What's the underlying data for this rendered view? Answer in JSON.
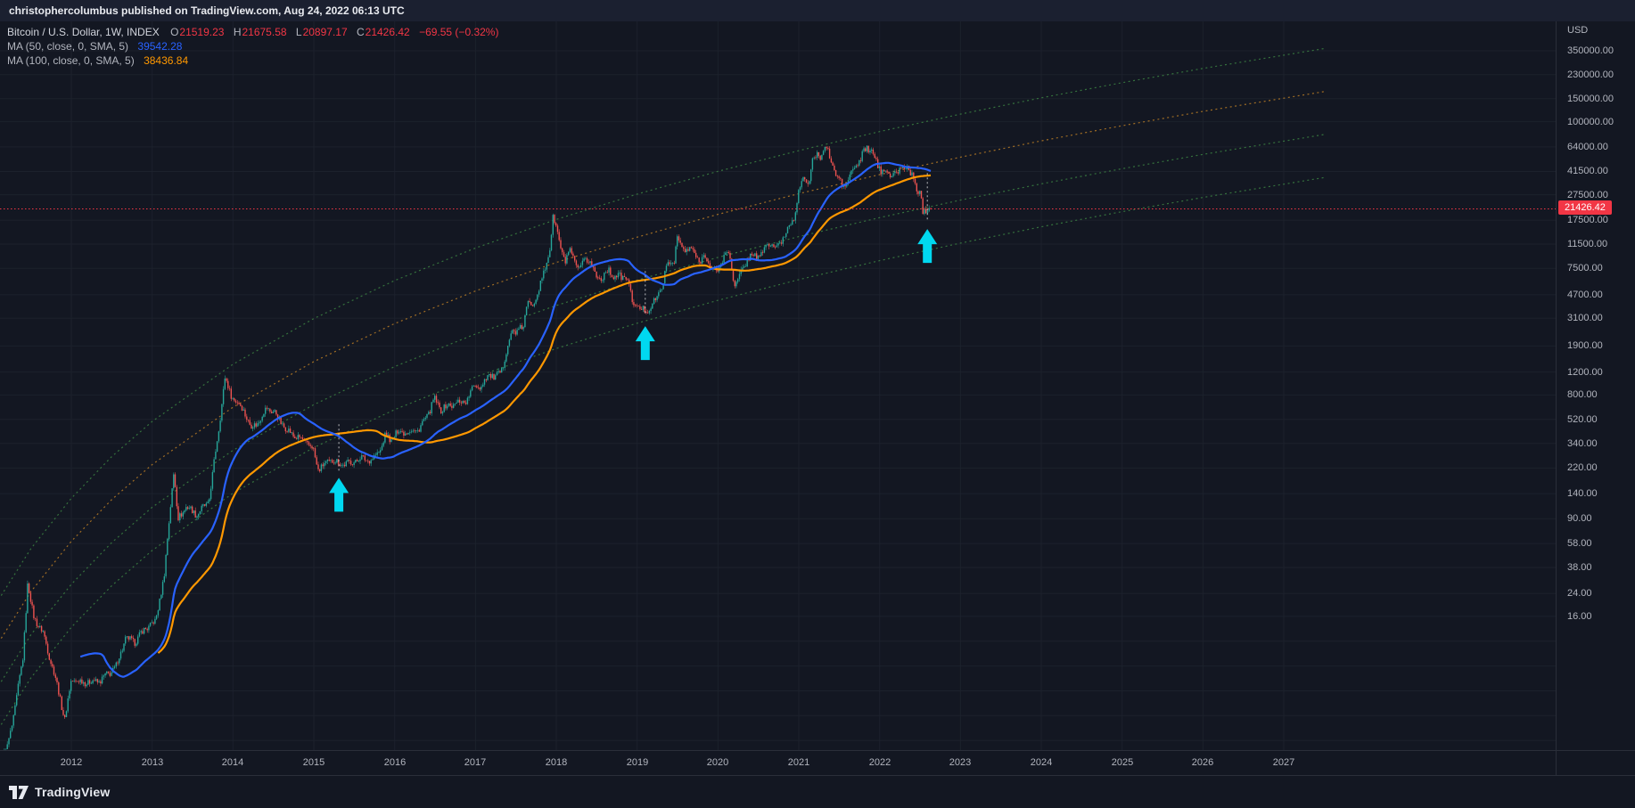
{
  "header": {
    "text": "christophercolumbus published on TradingView.com, Aug 24, 2022 06:13 UTC"
  },
  "legend": {
    "symbol": "Bitcoin / U.S. Dollar, 1W, INDEX",
    "ohlc": [
      {
        "label": "O",
        "value": "21519.23"
      },
      {
        "label": "H",
        "value": "21675.58"
      },
      {
        "label": "L",
        "value": "20897.17"
      },
      {
        "label": "C",
        "value": "21426.42"
      }
    ],
    "change": "−69.55 (−0.32%)",
    "ma50": {
      "label": "MA (50, close, 0, SMA, 5)",
      "value": "39542.28"
    },
    "ma100": {
      "label": "MA (100, close, 0, SMA, 5)",
      "value": "38436.84"
    }
  },
  "price_axis": {
    "currency": "USD",
    "ticks": [
      350000,
      230000,
      150000,
      100000,
      64000,
      41500,
      27500,
      17500,
      11500,
      7500,
      4700,
      3100,
      1900,
      1200,
      800,
      520,
      340,
      220,
      140,
      90,
      58,
      38,
      24,
      16
    ],
    "last_price": "21426.42"
  },
  "time_axis": {
    "years": [
      2012,
      2013,
      2014,
      2015,
      2016,
      2017,
      2018,
      2019,
      2020,
      2021,
      2022,
      2023,
      2024,
      2025,
      2026,
      2027
    ]
  },
  "footer": {
    "brand": "TradingView"
  },
  "colors": {
    "background": "#131722",
    "up": "#26a69a",
    "down": "#ef5350",
    "ma50": "#2962ff",
    "ma100": "#ff9800",
    "price_line": "#f23645",
    "arrow": "#00d8f0",
    "curve_green": "#4caf50",
    "curve_orange": "#ffa726",
    "grid": "rgba(140,150,165,0.08)",
    "axis_text": "#b2b5be"
  },
  "chart_data": {
    "type": "candlestick",
    "symbol": "Bitcoin / U.S. Dollar",
    "timeframe": "1W",
    "exchange": "INDEX",
    "scale": "log",
    "ylabel": "USD",
    "visible_time_range": [
      2011.1,
      2030.4
    ],
    "price_axis_range_hint": [
      1.6,
      430000
    ],
    "last_bar": {
      "open": 21519.23,
      "high": 21675.58,
      "low": 20897.17,
      "close": 21426.42,
      "change": -69.55,
      "change_pct": -0.32
    },
    "price_line": 21426.42,
    "anchors": [
      [
        2011.17,
        1.2
      ],
      [
        2011.28,
        2.6
      ],
      [
        2011.4,
        7.5
      ],
      [
        2011.46,
        29
      ],
      [
        2011.53,
        16
      ],
      [
        2011.65,
        12
      ],
      [
        2011.8,
        5.5
      ],
      [
        2011.92,
        2.6
      ],
      [
        2012.0,
        5.2
      ],
      [
        2012.15,
        5.0
      ],
      [
        2012.35,
        5.1
      ],
      [
        2012.55,
        6.5
      ],
      [
        2012.67,
        10.8
      ],
      [
        2012.78,
        10.2
      ],
      [
        2012.92,
        13.0
      ],
      [
        2013.04,
        14.5
      ],
      [
        2013.15,
        33
      ],
      [
        2013.24,
        140
      ],
      [
        2013.27,
        210
      ],
      [
        2013.32,
        88
      ],
      [
        2013.42,
        112
      ],
      [
        2013.55,
        97
      ],
      [
        2013.7,
        120
      ],
      [
        2013.82,
        420
      ],
      [
        2013.9,
        1080
      ],
      [
        2013.97,
        810
      ],
      [
        2014.05,
        700
      ],
      [
        2014.13,
        620
      ],
      [
        2014.22,
        450
      ],
      [
        2014.32,
        500
      ],
      [
        2014.42,
        640
      ],
      [
        2014.52,
        580
      ],
      [
        2014.65,
        440
      ],
      [
        2014.78,
        380
      ],
      [
        2014.9,
        350
      ],
      [
        2014.99,
        310
      ],
      [
        2015.05,
        215
      ],
      [
        2015.12,
        230
      ],
      [
        2015.22,
        255
      ],
      [
        2015.33,
        236
      ],
      [
        2015.45,
        240
      ],
      [
        2015.58,
        262
      ],
      [
        2015.72,
        252
      ],
      [
        2015.83,
        310
      ],
      [
        2015.89,
        395
      ],
      [
        2015.96,
        360
      ],
      [
        2016.05,
        425
      ],
      [
        2016.17,
        415
      ],
      [
        2016.3,
        435
      ],
      [
        2016.42,
        580
      ],
      [
        2016.49,
        745
      ],
      [
        2016.57,
        620
      ],
      [
        2016.67,
        660
      ],
      [
        2016.78,
        695
      ],
      [
        2016.9,
        735
      ],
      [
        2017.0,
        985
      ],
      [
        2017.07,
        905
      ],
      [
        2017.16,
        1180
      ],
      [
        2017.24,
        1055
      ],
      [
        2017.33,
        1270
      ],
      [
        2017.41,
        1990
      ],
      [
        2017.46,
        2560
      ],
      [
        2017.52,
        2420
      ],
      [
        2017.59,
        2650
      ],
      [
        2017.64,
        4150
      ],
      [
        2017.71,
        3850
      ],
      [
        2017.79,
        5500
      ],
      [
        2017.86,
        7150
      ],
      [
        2017.92,
        10800
      ],
      [
        2017.96,
        18900
      ],
      [
        2018.01,
        14200
      ],
      [
        2018.06,
        10500
      ],
      [
        2018.11,
        8400
      ],
      [
        2018.16,
        10200
      ],
      [
        2018.22,
        8700
      ],
      [
        2018.29,
        7050
      ],
      [
        2018.36,
        9050
      ],
      [
        2018.42,
        8400
      ],
      [
        2018.49,
        6500
      ],
      [
        2018.57,
        6350
      ],
      [
        2018.64,
        7350
      ],
      [
        2018.72,
        6450
      ],
      [
        2018.81,
        6500
      ],
      [
        2018.88,
        6300
      ],
      [
        2018.93,
        4350
      ],
      [
        2018.99,
        3850
      ],
      [
        2019.05,
        3600
      ],
      [
        2019.12,
        3580
      ],
      [
        2019.2,
        3980
      ],
      [
        2019.29,
        5150
      ],
      [
        2019.38,
        8000
      ],
      [
        2019.46,
        8800
      ],
      [
        2019.49,
        12800
      ],
      [
        2019.55,
        10900
      ],
      [
        2019.62,
        10200
      ],
      [
        2019.69,
        10400
      ],
      [
        2019.77,
        8300
      ],
      [
        2019.85,
        9500
      ],
      [
        2019.92,
        7300
      ],
      [
        2020.0,
        7250
      ],
      [
        2020.08,
        9500
      ],
      [
        2020.14,
        9900
      ],
      [
        2020.21,
        5400
      ],
      [
        2020.28,
        6750
      ],
      [
        2020.36,
        8850
      ],
      [
        2020.44,
        9600
      ],
      [
        2020.52,
        9150
      ],
      [
        2020.59,
        11100
      ],
      [
        2020.66,
        11600
      ],
      [
        2020.73,
        10500
      ],
      [
        2020.81,
        13100
      ],
      [
        2020.88,
        15600
      ],
      [
        2020.94,
        18800
      ],
      [
        2021.0,
        29300
      ],
      [
        2021.04,
        33500
      ],
      [
        2021.08,
        38300
      ],
      [
        2021.12,
        33000
      ],
      [
        2021.17,
        48500
      ],
      [
        2021.22,
        56500
      ],
      [
        2021.26,
        54500
      ],
      [
        2021.31,
        59000
      ],
      [
        2021.34,
        63200
      ],
      [
        2021.38,
        55500
      ],
      [
        2021.42,
        46000
      ],
      [
        2021.46,
        37500
      ],
      [
        2021.51,
        35800
      ],
      [
        2021.56,
        31800
      ],
      [
        2021.61,
        34800
      ],
      [
        2021.66,
        42200
      ],
      [
        2021.71,
        47200
      ],
      [
        2021.76,
        48900
      ],
      [
        2021.81,
        61200
      ],
      [
        2021.84,
        64200
      ],
      [
        2021.88,
        58500
      ],
      [
        2021.92,
        57200
      ],
      [
        2021.97,
        46800
      ],
      [
        2022.02,
        41800
      ],
      [
        2022.07,
        43600
      ],
      [
        2022.12,
        38600
      ],
      [
        2022.17,
        39300
      ],
      [
        2022.23,
        41200
      ],
      [
        2022.28,
        44600
      ],
      [
        2022.33,
        46200
      ],
      [
        2022.38,
        39800
      ],
      [
        2022.42,
        36100
      ],
      [
        2022.46,
        30200
      ],
      [
        2022.5,
        29300
      ],
      [
        2022.54,
        19200
      ],
      [
        2022.58,
        21400
      ],
      [
        2022.61,
        23200
      ],
      [
        2022.635,
        24300
      ],
      [
        2022.648,
        21426.42
      ]
    ],
    "ma": [
      {
        "name": "MA50",
        "period": 50,
        "color": "#2962ff",
        "last_value": 39542.28
      },
      {
        "name": "MA100",
        "period": 100,
        "color": "#ff9800",
        "last_value": 38436.84
      }
    ],
    "trend_curves": [
      {
        "name": "upper-resistance",
        "color": "#4caf50",
        "points": [
          [
            2011.1,
            21.5
          ],
          [
            2011.5,
            53
          ],
          [
            2012,
            129
          ],
          [
            2012.5,
            269
          ],
          [
            2013,
            501
          ],
          [
            2014,
            1377
          ],
          [
            2015,
            3085
          ],
          [
            2016,
            6040
          ],
          [
            2017,
            10740
          ],
          [
            2018,
            17780
          ],
          [
            2019,
            27800
          ],
          [
            2020,
            41600
          ],
          [
            2021,
            59950
          ],
          [
            2022,
            83900
          ],
          [
            2023,
            114300
          ],
          [
            2024,
            152400
          ],
          [
            2025,
            199200
          ],
          [
            2026,
            256400
          ],
          [
            2027.5,
            364000
          ]
        ]
      },
      {
        "name": "mid-channel",
        "color": "#ffa726",
        "points": [
          [
            2011.1,
            10.1
          ],
          [
            2011.5,
            24.8
          ],
          [
            2012,
            60.3
          ],
          [
            2012.5,
            126
          ],
          [
            2013,
            234
          ],
          [
            2014,
            644
          ],
          [
            2015,
            1443
          ],
          [
            2016,
            2825
          ],
          [
            2017,
            5023
          ],
          [
            2018,
            8316
          ],
          [
            2019,
            13002
          ],
          [
            2020,
            19456
          ],
          [
            2021,
            28039
          ],
          [
            2022,
            39240
          ],
          [
            2023,
            53458
          ],
          [
            2024,
            71277
          ],
          [
            2025,
            93166
          ],
          [
            2026,
            119918
          ],
          [
            2027.5,
            170248
          ]
        ]
      },
      {
        "name": "lower-channel",
        "color": "#4caf50",
        "points": [
          [
            2011.1,
            4.7
          ],
          [
            2011.5,
            11.6
          ],
          [
            2012,
            28.2
          ],
          [
            2012.5,
            58.9
          ],
          [
            2013,
            110
          ],
          [
            2014,
            301
          ],
          [
            2015,
            675
          ],
          [
            2016,
            1321
          ],
          [
            2017,
            2350
          ],
          [
            2018,
            3890
          ],
          [
            2019,
            6082
          ],
          [
            2020,
            9102
          ],
          [
            2021,
            13117
          ],
          [
            2022,
            18357
          ],
          [
            2023,
            25009
          ],
          [
            2024,
            33345
          ],
          [
            2025,
            43585
          ],
          [
            2026,
            56100
          ],
          [
            2027.5,
            79643
          ]
        ]
      },
      {
        "name": "support-curve",
        "color": "#4caf50",
        "points": [
          [
            2011.1,
            2.2
          ],
          [
            2011.5,
            5.4
          ],
          [
            2012,
            13.2
          ],
          [
            2012.5,
            27.5
          ],
          [
            2013,
            51.3
          ],
          [
            2014,
            141
          ],
          [
            2015,
            316
          ],
          [
            2016,
            618
          ],
          [
            2017,
            1099
          ],
          [
            2018,
            1819
          ],
          [
            2019,
            2845
          ],
          [
            2020,
            4258
          ],
          [
            2021,
            6136
          ],
          [
            2022,
            8587
          ],
          [
            2023,
            11698
          ],
          [
            2024,
            15598
          ],
          [
            2025,
            20388
          ],
          [
            2026,
            26243
          ],
          [
            2027.5,
            37253
          ]
        ]
      }
    ],
    "arrows": [
      {
        "t": 2015.31,
        "tip_price": 185
      },
      {
        "t": 2019.1,
        "tip_price": 2700
      },
      {
        "t": 2022.59,
        "tip_price": 15000
      }
    ],
    "markers": [
      {
        "t": 2015.31,
        "p1": 210,
        "p2": 480
      },
      {
        "t": 2019.1,
        "p1": 3400,
        "p2": 7500
      },
      {
        "t": 2022.59,
        "p1": 17800,
        "p2": 41000
      }
    ]
  }
}
